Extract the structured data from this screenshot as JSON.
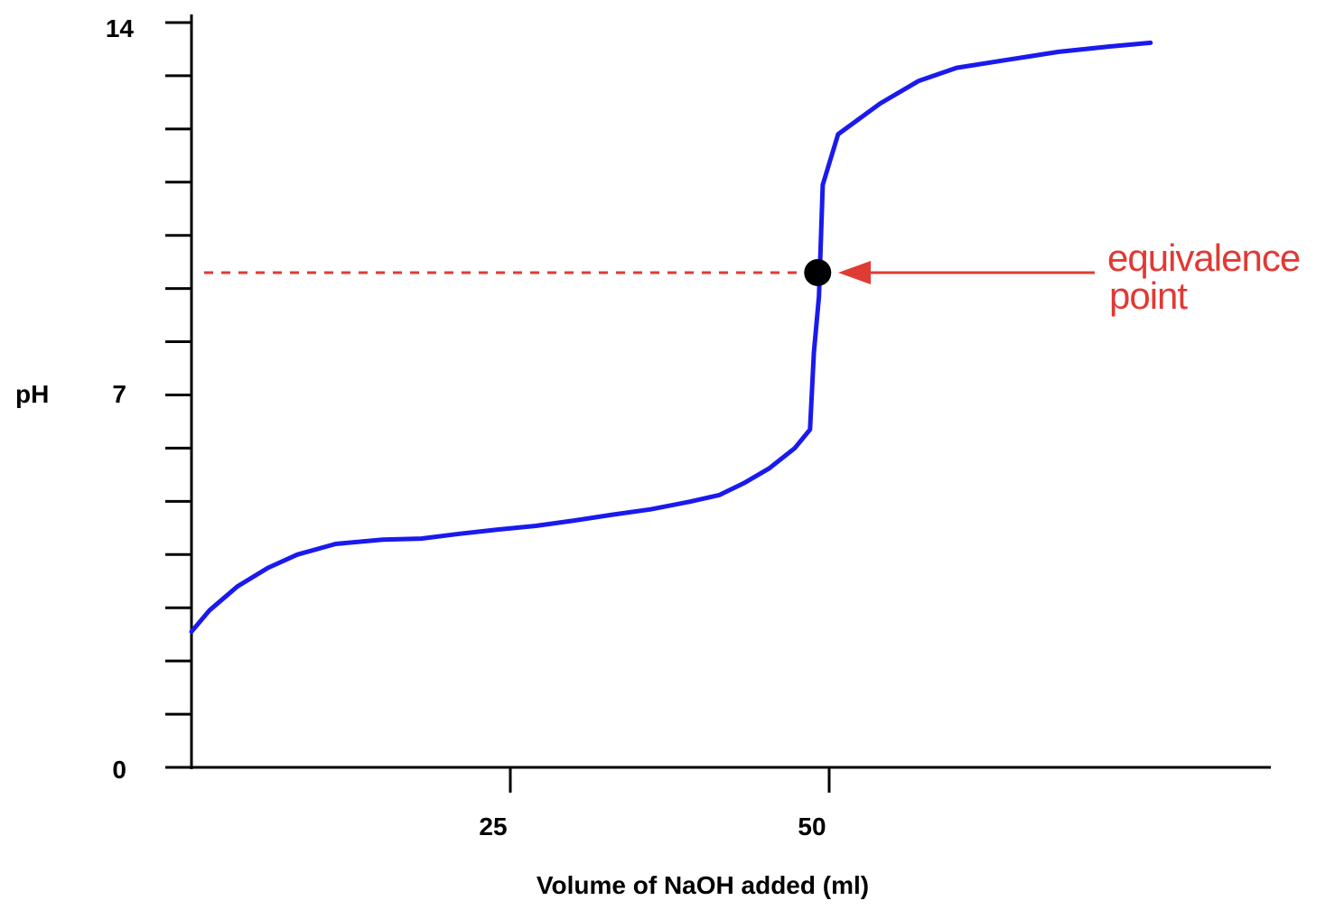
{
  "chart_data": {
    "type": "line",
    "title": "",
    "xlabel": "Volume of NaOH added (ml)",
    "ylabel": "pH",
    "xlim": [
      0,
      90
    ],
    "ylim": [
      0,
      14
    ],
    "x_ticks": [
      {
        "value": 25,
        "label": "25"
      },
      {
        "value": 50,
        "label": "50"
      }
    ],
    "y_ticks": [
      {
        "value": 0,
        "label": "0"
      },
      {
        "value": 7,
        "label": "7"
      },
      {
        "value": 14,
        "label": "14"
      }
    ],
    "y_minor_ticks": [
      1,
      2,
      3,
      4,
      5,
      6,
      8,
      9,
      10,
      11,
      12,
      13
    ],
    "grid": false,
    "legend": "none",
    "series": [
      {
        "color": "#1a1aee",
        "points": [
          [
            0,
            2.55
          ],
          [
            1.4,
            2.95
          ],
          [
            3.6,
            3.4
          ],
          [
            6.0,
            3.75
          ],
          [
            8.3,
            4.0
          ],
          [
            11.3,
            4.2
          ],
          [
            15,
            4.28
          ],
          [
            18,
            4.3
          ],
          [
            21,
            4.39
          ],
          [
            24,
            4.47
          ],
          [
            27,
            4.54
          ],
          [
            30,
            4.64
          ],
          [
            33,
            4.75
          ],
          [
            36,
            4.85
          ],
          [
            39,
            4.99
          ],
          [
            41.4,
            5.12
          ],
          [
            43.3,
            5.34
          ],
          [
            45.3,
            5.62
          ],
          [
            47.3,
            6.0
          ],
          [
            48.5,
            6.35
          ],
          [
            48.8,
            7.8
          ],
          [
            49.2,
            8.85
          ],
          [
            49.5,
            10.95
          ],
          [
            50.7,
            11.9
          ],
          [
            54,
            12.48
          ],
          [
            57,
            12.9
          ],
          [
            60,
            13.15
          ],
          [
            64,
            13.3
          ],
          [
            68,
            13.45
          ],
          [
            72,
            13.55
          ],
          [
            75.2,
            13.62
          ]
        ]
      }
    ],
    "annotations": [
      {
        "label": "equivalence point",
        "lines": [
          "equivalence",
          "point"
        ],
        "point": [
          49.1,
          9.3
        ],
        "color": "#e03a34",
        "reference_line": "horizontal dashed",
        "marker_color": "#000000"
      }
    ]
  }
}
